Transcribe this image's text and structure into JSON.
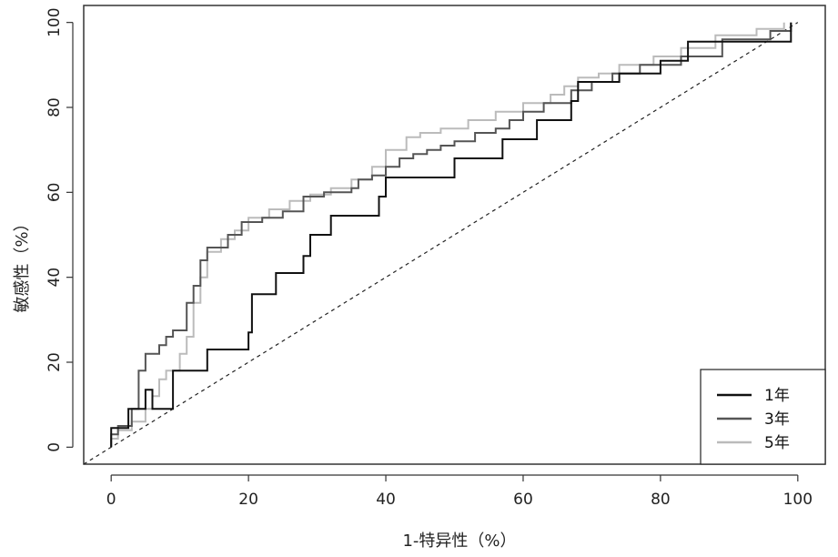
{
  "chart_data": {
    "type": "line",
    "xlabel": "1-特异性（%）",
    "ylabel": "敏感性（%）",
    "xlim": [
      -4,
      104
    ],
    "ylim": [
      -4,
      104
    ],
    "x_ticks": [
      0,
      20,
      40,
      60,
      80,
      100
    ],
    "y_ticks": [
      0,
      20,
      40,
      60,
      80,
      100
    ],
    "x_tick_labels": [
      "0",
      "20",
      "40",
      "60",
      "80",
      "100"
    ],
    "y_tick_labels": [
      "0",
      "20",
      "40",
      "60",
      "80",
      "100"
    ],
    "grid": false,
    "legend_position": "bottom-right",
    "reference_line": {
      "style": "dashed",
      "from": [
        -4,
        -4
      ],
      "to": [
        100,
        100
      ]
    },
    "series": [
      {
        "name": "1年",
        "color": "#111111",
        "points": [
          [
            0,
            0
          ],
          [
            0,
            4.5
          ],
          [
            2.5,
            4.5
          ],
          [
            2.5,
            9
          ],
          [
            5,
            9
          ],
          [
            5,
            13.5
          ],
          [
            6,
            13.5
          ],
          [
            6,
            9
          ],
          [
            9,
            9
          ],
          [
            9,
            18
          ],
          [
            14,
            18
          ],
          [
            14,
            23
          ],
          [
            20,
            23
          ],
          [
            20,
            27
          ],
          [
            20.5,
            27
          ],
          [
            20.5,
            36
          ],
          [
            24,
            36
          ],
          [
            24,
            41
          ],
          [
            28,
            41
          ],
          [
            28,
            45
          ],
          [
            29,
            45
          ],
          [
            29,
            50
          ],
          [
            32,
            50
          ],
          [
            32,
            54.5
          ],
          [
            39,
            54.5
          ],
          [
            39,
            59
          ],
          [
            40,
            59
          ],
          [
            40,
            63.5
          ],
          [
            50,
            63.5
          ],
          [
            50,
            68
          ],
          [
            57,
            68
          ],
          [
            57,
            72.5
          ],
          [
            62,
            72.5
          ],
          [
            62,
            77
          ],
          [
            67,
            77
          ],
          [
            67,
            81.5
          ],
          [
            68,
            81.5
          ],
          [
            68,
            86
          ],
          [
            74,
            86
          ],
          [
            74,
            88
          ],
          [
            80,
            88
          ],
          [
            80,
            91
          ],
          [
            84,
            91
          ],
          [
            84,
            95.5
          ],
          [
            99,
            95.5
          ],
          [
            99,
            100
          ]
        ]
      },
      {
        "name": "3年",
        "color": "#555555",
        "points": [
          [
            0,
            0
          ],
          [
            0,
            3
          ],
          [
            1,
            3
          ],
          [
            1,
            5
          ],
          [
            3,
            5
          ],
          [
            3,
            9
          ],
          [
            4,
            9
          ],
          [
            4,
            18
          ],
          [
            5,
            18
          ],
          [
            5,
            22
          ],
          [
            7,
            22
          ],
          [
            7,
            24
          ],
          [
            8,
            24
          ],
          [
            8,
            26
          ],
          [
            9,
            26
          ],
          [
            9,
            27.5
          ],
          [
            11,
            27.5
          ],
          [
            11,
            34
          ],
          [
            12,
            34
          ],
          [
            12,
            38
          ],
          [
            13,
            38
          ],
          [
            13,
            44
          ],
          [
            14,
            44
          ],
          [
            14,
            47
          ],
          [
            17,
            47
          ],
          [
            17,
            50
          ],
          [
            19,
            50
          ],
          [
            19,
            53
          ],
          [
            22,
            53
          ],
          [
            22,
            54
          ],
          [
            25,
            54
          ],
          [
            25,
            55.5
          ],
          [
            28,
            55.5
          ],
          [
            28,
            59
          ],
          [
            31,
            59
          ],
          [
            31,
            60
          ],
          [
            35,
            60
          ],
          [
            35,
            61
          ],
          [
            36,
            61
          ],
          [
            36,
            63
          ],
          [
            38,
            63
          ],
          [
            38,
            64
          ],
          [
            40,
            64
          ],
          [
            40,
            66
          ],
          [
            42,
            66
          ],
          [
            42,
            68
          ],
          [
            44,
            68
          ],
          [
            44,
            69
          ],
          [
            46,
            69
          ],
          [
            46,
            70
          ],
          [
            48,
            70
          ],
          [
            48,
            71
          ],
          [
            50,
            71
          ],
          [
            50,
            72
          ],
          [
            53,
            72
          ],
          [
            53,
            74
          ],
          [
            56,
            74
          ],
          [
            56,
            75
          ],
          [
            58,
            75
          ],
          [
            58,
            77
          ],
          [
            60,
            77
          ],
          [
            60,
            79
          ],
          [
            63,
            79
          ],
          [
            63,
            81
          ],
          [
            67,
            81
          ],
          [
            67,
            84
          ],
          [
            70,
            84
          ],
          [
            70,
            86
          ],
          [
            73,
            86
          ],
          [
            73,
            88
          ],
          [
            77,
            88
          ],
          [
            77,
            90
          ],
          [
            83,
            90
          ],
          [
            83,
            92
          ],
          [
            89,
            92
          ],
          [
            89,
            96
          ],
          [
            96,
            96
          ],
          [
            96,
            98
          ],
          [
            99,
            98
          ],
          [
            99,
            100
          ]
        ]
      },
      {
        "name": "5年",
        "color": "#bbbbbb",
        "points": [
          [
            0,
            0
          ],
          [
            0,
            2
          ],
          [
            1,
            2
          ],
          [
            1,
            4
          ],
          [
            3,
            4
          ],
          [
            3,
            6
          ],
          [
            5,
            6
          ],
          [
            5,
            9
          ],
          [
            6,
            9
          ],
          [
            6,
            12
          ],
          [
            7,
            12
          ],
          [
            7,
            16
          ],
          [
            8,
            16
          ],
          [
            8,
            18
          ],
          [
            10,
            18
          ],
          [
            10,
            22
          ],
          [
            11,
            22
          ],
          [
            11,
            26
          ],
          [
            12,
            26
          ],
          [
            12,
            34
          ],
          [
            13,
            34
          ],
          [
            13,
            40
          ],
          [
            14,
            40
          ],
          [
            14,
            46
          ],
          [
            16,
            46
          ],
          [
            16,
            49
          ],
          [
            18,
            49
          ],
          [
            18,
            51
          ],
          [
            20,
            51
          ],
          [
            20,
            54
          ],
          [
            23,
            54
          ],
          [
            23,
            56
          ],
          [
            26,
            56
          ],
          [
            26,
            58
          ],
          [
            29,
            58
          ],
          [
            29,
            59.5
          ],
          [
            32,
            59.5
          ],
          [
            32,
            61
          ],
          [
            35,
            61
          ],
          [
            35,
            63
          ],
          [
            38,
            63
          ],
          [
            38,
            66
          ],
          [
            40,
            66
          ],
          [
            40,
            70
          ],
          [
            43,
            70
          ],
          [
            43,
            73
          ],
          [
            45,
            73
          ],
          [
            45,
            74
          ],
          [
            48,
            74
          ],
          [
            48,
            75
          ],
          [
            52,
            75
          ],
          [
            52,
            77
          ],
          [
            56,
            77
          ],
          [
            56,
            79
          ],
          [
            60,
            79
          ],
          [
            60,
            81
          ],
          [
            64,
            81
          ],
          [
            64,
            83
          ],
          [
            66,
            83
          ],
          [
            66,
            85
          ],
          [
            68,
            85
          ],
          [
            68,
            87
          ],
          [
            71,
            87
          ],
          [
            71,
            88
          ],
          [
            74,
            88
          ],
          [
            74,
            90
          ],
          [
            79,
            90
          ],
          [
            79,
            92
          ],
          [
            83,
            92
          ],
          [
            83,
            94
          ],
          [
            88,
            94
          ],
          [
            88,
            97
          ],
          [
            94,
            97
          ],
          [
            94,
            98.5
          ],
          [
            98,
            98.5
          ],
          [
            98,
            100
          ]
        ]
      }
    ]
  }
}
